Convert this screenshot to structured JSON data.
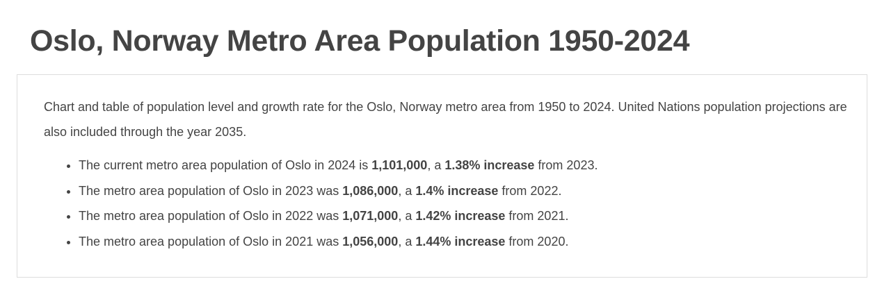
{
  "title": "Oslo, Norway Metro Area Population 1950-2024",
  "intro": "Chart and table of population level and growth rate for the Oslo, Norway metro area from 1950 to 2024. United Nations population projections are also included through the year 2035.",
  "facts": [
    {
      "pre": "The current metro area population of Oslo in 2024 is ",
      "value": "1,101,000",
      "mid": ", a ",
      "pct": "1.38% increase",
      "post": " from 2023."
    },
    {
      "pre": "The metro area population of Oslo in 2023 was ",
      "value": "1,086,000",
      "mid": ", a ",
      "pct": "1.4% increase",
      "post": " from 2022."
    },
    {
      "pre": "The metro area population of Oslo in 2022 was ",
      "value": "1,071,000",
      "mid": ", a ",
      "pct": "1.42% increase",
      "post": " from 2021."
    },
    {
      "pre": "The metro area population of Oslo in 2021 was ",
      "value": "1,056,000",
      "mid": ", a ",
      "pct": "1.44% increase",
      "post": " from 2020."
    }
  ]
}
